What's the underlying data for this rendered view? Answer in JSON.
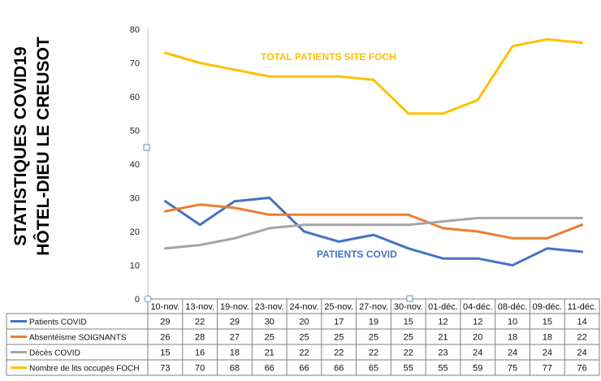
{
  "title_lines": [
    "STATISTIQUES COVID19",
    "HÔTEL-DIEU LE CREUSOT"
  ],
  "chart_data": {
    "type": "line",
    "categories": [
      "10-nov.",
      "13-nov.",
      "19-nov.",
      "23-nov.",
      "24-nov.",
      "25-nov.",
      "27-nov.",
      "30-nov.",
      "01-déc.",
      "04-déc.",
      "08-déc.",
      "09-déc.",
      "11-déc."
    ],
    "ylim": [
      0,
      80
    ],
    "yticks": [
      0,
      10,
      20,
      30,
      40,
      50,
      60,
      70,
      80
    ],
    "grid": false,
    "legend": "data-table-below",
    "series": [
      {
        "name": "Patients COVID",
        "color": "#4472C4",
        "values": [
          29,
          22,
          29,
          30,
          20,
          17,
          19,
          15,
          12,
          12,
          10,
          15,
          14
        ]
      },
      {
        "name": "Absentéisme SOIGNANTS",
        "color": "#ED7D31",
        "values": [
          26,
          28,
          27,
          25,
          25,
          25,
          25,
          25,
          21,
          20,
          18,
          18,
          22
        ]
      },
      {
        "name": "Décès COVID",
        "color": "#A5A5A5",
        "values": [
          15,
          16,
          18,
          21,
          22,
          22,
          22,
          22,
          23,
          24,
          24,
          24,
          24
        ]
      },
      {
        "name": "Nombre de lits occupés FOCH",
        "color": "#FFC000",
        "values": [
          73,
          70,
          68,
          66,
          66,
          66,
          65,
          55,
          55,
          59,
          75,
          77,
          76
        ]
      }
    ],
    "annotations": [
      {
        "text": "TOTAL PATIENTS SITE FOCH",
        "color": "#FFC000"
      },
      {
        "text": "PATIENTS COVID",
        "color": "#4472C4"
      }
    ]
  }
}
